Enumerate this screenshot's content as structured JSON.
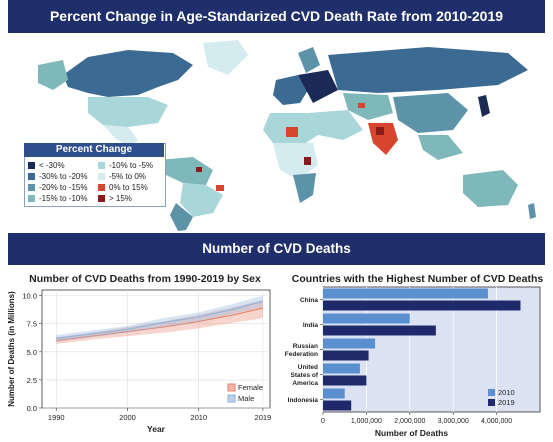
{
  "banners": {
    "top": "Percent Change in Age-Standarized CVD Death Rate from 2010-2019",
    "middle": "Number of CVD Deaths"
  },
  "map_legend": {
    "title": "Percent Change",
    "items": [
      {
        "label": "< -30%",
        "color": "#1b2a55"
      },
      {
        "label": "-10% to -5%",
        "color": "#a9d6d8"
      },
      {
        "label": "-30% to -20%",
        "color": "#3b6b93"
      },
      {
        "label": "-5% to 0%",
        "color": "#d4ecef"
      },
      {
        "label": "-20% to -15%",
        "color": "#5c93a9"
      },
      {
        "label": "0% to 15%",
        "color": "#d8452e"
      },
      {
        "label": "-15% to -10%",
        "color": "#7eb8bb"
      },
      {
        "label": "> 15%",
        "color": "#8b1a1a"
      }
    ]
  },
  "colors": {
    "banner": "#1f2f6b",
    "female": "#e8866c",
    "male": "#8fb3dc",
    "bar_2010": "#5a8fd0",
    "bar_2019": "#1f2a6b",
    "bar_bg": "#dbe3f3"
  },
  "chart_data": [
    {
      "type": "area",
      "title": "Number of CVD Deaths from 1990-2019 by Sex",
      "xlabel": "Year",
      "ylabel": "Number of Deaths (in Millions)",
      "xlim": [
        1988,
        2020
      ],
      "ylim": [
        0,
        10.5
      ],
      "x_ticks": [
        "1990",
        "2000",
        "2010",
        "2019"
      ],
      "y_ticks": [
        "0.0",
        "2.5",
        "5.0",
        "7.5",
        "10.0"
      ],
      "x": [
        1990,
        1995,
        2000,
        2005,
        2010,
        2015,
        2019
      ],
      "series": [
        {
          "name": "Female",
          "values": [
            6.0,
            6.4,
            6.8,
            7.2,
            7.7,
            8.3,
            8.9
          ],
          "lower": [
            5.7,
            6.1,
            6.4,
            6.7,
            7.1,
            7.6,
            8.0
          ],
          "upper": [
            6.3,
            6.7,
            7.2,
            7.7,
            8.3,
            9.0,
            9.6
          ]
        },
        {
          "name": "Male",
          "values": [
            6.2,
            6.6,
            7.0,
            7.6,
            8.1,
            8.8,
            9.5
          ],
          "lower": [
            5.9,
            6.3,
            6.7,
            7.2,
            7.7,
            8.4,
            9.0
          ],
          "upper": [
            6.5,
            6.9,
            7.3,
            8.0,
            8.5,
            9.3,
            10.0
          ]
        }
      ],
      "legend": "bottom-right"
    },
    {
      "type": "bar",
      "orientation": "horizontal",
      "title": "Countries with the Highest Number of CVD Deaths",
      "xlabel": "Number of Deaths",
      "xlim": [
        0,
        5000000
      ],
      "x_ticks": [
        "0",
        "1,000,000",
        "2,000,000",
        "3,000,000",
        "4,000,000"
      ],
      "categories": [
        [
          "China"
        ],
        [
          "India"
        ],
        [
          "Russian",
          "Federation"
        ],
        [
          "United",
          "States of",
          "America"
        ],
        [
          "Indonesia"
        ]
      ],
      "series": [
        {
          "name": "2010",
          "values": [
            3800000,
            2000000,
            1200000,
            850000,
            500000
          ]
        },
        {
          "name": "2019",
          "values": [
            4550000,
            2600000,
            1050000,
            1000000,
            650000
          ]
        }
      ],
      "legend": "bottom-right"
    }
  ]
}
